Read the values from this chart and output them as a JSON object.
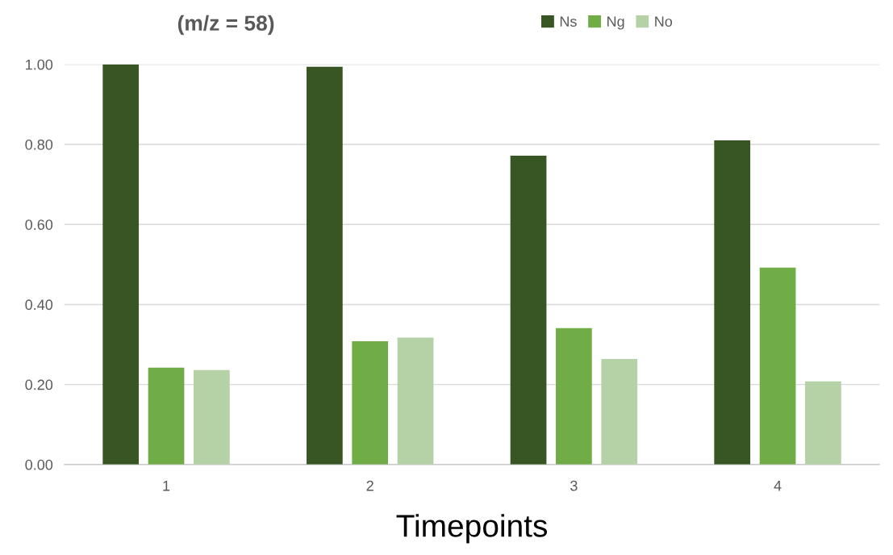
{
  "chart_data": {
    "type": "bar",
    "title": "(m/z = 58)",
    "xlabel": "Timepoints",
    "categories": [
      "1",
      "2",
      "3",
      "4"
    ],
    "series": [
      {
        "name": "Ns",
        "color": "#375623",
        "values": [
          1.0,
          0.994,
          0.772,
          0.81
        ]
      },
      {
        "name": "Ng",
        "color": "#70ad47",
        "values": [
          0.242,
          0.308,
          0.341,
          0.492
        ]
      },
      {
        "name": "No",
        "color": "#b5d2a6",
        "values": [
          0.236,
          0.317,
          0.264,
          0.208
        ]
      }
    ],
    "ylim": [
      0,
      1.0
    ],
    "yticks": [
      {
        "value": 0,
        "label": "0.00"
      },
      {
        "value": 0.2,
        "label": "0.20"
      },
      {
        "value": 0.4,
        "label": "0.40"
      },
      {
        "value": 0.6,
        "label": "0.60"
      },
      {
        "value": 0.8,
        "label": "0.80"
      },
      {
        "value": 1.0,
        "label": "1.00"
      }
    ],
    "grid": "y",
    "legend": "top"
  }
}
